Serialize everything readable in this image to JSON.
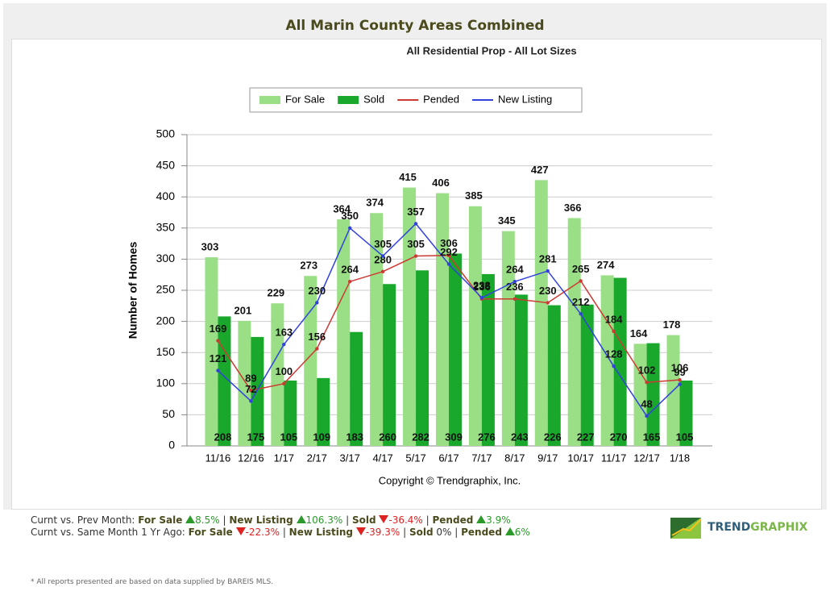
{
  "chart_data": {
    "type": "bar_line",
    "title": "All Marin County Areas Combined",
    "subtitle": "All Residential Prop - All Lot Sizes",
    "y_label": "Number of Homes",
    "copyright": "Copyright © Trendgraphix, Inc.",
    "legend": "top",
    "grid": true,
    "categories": [
      "11/16",
      "12/16",
      "1/17",
      "2/17",
      "3/17",
      "4/17",
      "5/17",
      "6/17",
      "7/17",
      "8/17",
      "9/17",
      "10/17",
      "11/17",
      "12/17",
      "1/18"
    ],
    "series": [
      {
        "name": "For Sale",
        "kind": "bar",
        "color": "#9ade86",
        "values": [
          303,
          201,
          229,
          273,
          364,
          374,
          415,
          406,
          385,
          345,
          427,
          366,
          274,
          164,
          178
        ]
      },
      {
        "name": "Sold",
        "kind": "bar",
        "color": "#19a82c",
        "values": [
          208,
          175,
          105,
          109,
          183,
          260,
          282,
          309,
          276,
          243,
          226,
          227,
          270,
          165,
          105
        ]
      },
      {
        "name": "Pended",
        "kind": "line",
        "color": "#cc3a33",
        "values": [
          169,
          89,
          100,
          156,
          264,
          280,
          305,
          306,
          236,
          236,
          230,
          265,
          184,
          102,
          106
        ]
      },
      {
        "name": "New Listing",
        "kind": "line",
        "color": "#3142dd",
        "values": [
          121,
          72,
          163,
          230,
          350,
          305,
          357,
          292,
          238,
          264,
          281,
          212,
          128,
          48,
          99
        ]
      }
    ],
    "ylim": [
      0,
      500
    ],
    "yticks": [
      0,
      50,
      100,
      150,
      200,
      250,
      300,
      350,
      400,
      450,
      500
    ]
  },
  "footer": {
    "comparisons": [
      {
        "label": "Curnt vs. Prev Month:",
        "items": [
          {
            "name": "For Sale",
            "direction": "up",
            "change": "8.5%"
          },
          {
            "name": "New Listing",
            "direction": "up",
            "change": "106.3%"
          },
          {
            "name": "Sold",
            "direction": "down",
            "change": "-36.4%"
          },
          {
            "name": "Pended",
            "direction": "up",
            "change": "3.9%"
          }
        ]
      },
      {
        "label": "Curnt vs. Same Month 1 Yr Ago:",
        "items": [
          {
            "name": "For Sale",
            "direction": "down",
            "change": "-22.3%"
          },
          {
            "name": "New Listing",
            "direction": "down",
            "change": "-39.3%"
          },
          {
            "name": "Sold",
            "change": "0%"
          },
          {
            "name": "Pended",
            "direction": "up",
            "change": "6%"
          }
        ]
      }
    ],
    "note": "* All reports presented are based on data supplied by BAREIS MLS.",
    "logo": {
      "part1": "TREND",
      "part2": "GRAPHIX"
    }
  }
}
